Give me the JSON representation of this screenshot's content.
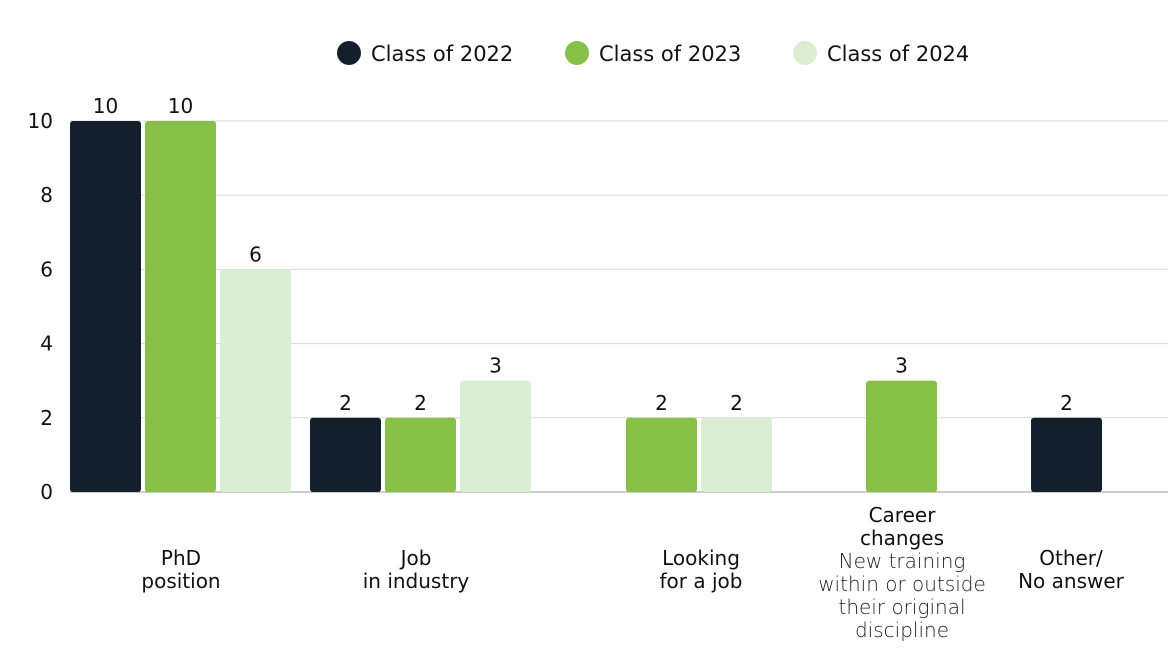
{
  "chart_data": {
    "type": "bar",
    "legend_position": "top-center",
    "grid": true,
    "ylim": [
      0,
      10
    ],
    "yticks": [
      "0",
      "2",
      "4",
      "6",
      "8",
      "10"
    ],
    "series": [
      {
        "name": "Class of 2022",
        "color": "#13202b"
      },
      {
        "name": "Class of 2023",
        "color": "#86c046"
      },
      {
        "name": "Class of 2024",
        "color": "#dbeed3"
      }
    ],
    "categories": [
      {
        "label": [
          "PhD",
          "position"
        ],
        "sublabel": [],
        "bars": [
          {
            "series": 0,
            "value": 10
          },
          {
            "series": 1,
            "value": 10
          },
          {
            "series": 2,
            "value": 6
          }
        ]
      },
      {
        "label": [
          "Job",
          "in industry"
        ],
        "sublabel": [],
        "bars": [
          {
            "series": 0,
            "value": 2
          },
          {
            "series": 1,
            "value": 2
          },
          {
            "series": 2,
            "value": 3
          }
        ]
      },
      {
        "label": [
          "Looking",
          "for a job"
        ],
        "sublabel": [],
        "bars": [
          {
            "series": 1,
            "value": 2
          },
          {
            "series": 2,
            "value": 2
          }
        ]
      },
      {
        "label": [
          "Career",
          "changes"
        ],
        "sublabel": [
          "New training",
          "within or outside",
          "their original",
          "discipline"
        ],
        "bars": [
          {
            "series": 1,
            "value": 3
          }
        ]
      },
      {
        "label": [
          "Other/",
          "No answer"
        ],
        "sublabel": [],
        "bars": [
          {
            "series": 0,
            "value": 2
          }
        ]
      }
    ]
  }
}
